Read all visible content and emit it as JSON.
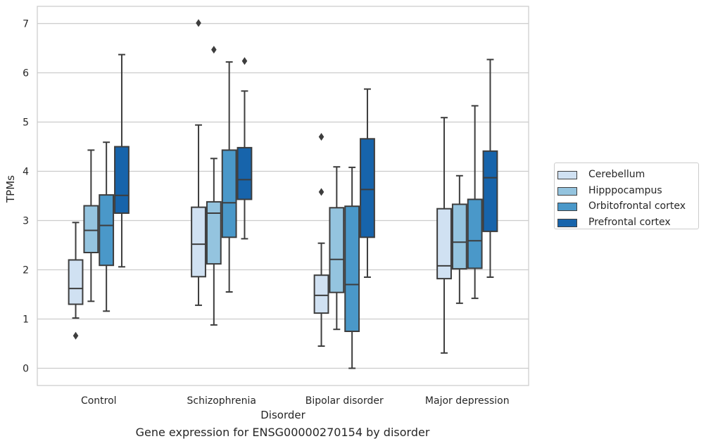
{
  "caption": "Gene expression for ENSG00000270154 by disorder",
  "chart_data": {
    "type": "box",
    "xlabel": "Disorder",
    "ylabel": "TPMs",
    "ylim": [
      -0.35,
      7.35
    ],
    "yticks": [
      0,
      1,
      2,
      3,
      4,
      5,
      6,
      7
    ],
    "grid": true,
    "legend_position": "right",
    "categories": [
      "Control",
      "Schizophrenia",
      "Bipolar disorder",
      "Major depression"
    ],
    "series": [
      {
        "name": "Cerebellum",
        "color": "#d0e1f2",
        "boxes": [
          {
            "whisker_low": 1.02,
            "q1": 1.3,
            "median": 1.62,
            "q3": 2.2,
            "whisker_high": 2.96,
            "outliers": [
              0.66
            ]
          },
          {
            "whisker_low": 1.28,
            "q1": 1.86,
            "median": 2.52,
            "q3": 3.27,
            "whisker_high": 4.94,
            "outliers": [
              7.01
            ]
          },
          {
            "whisker_low": 0.45,
            "q1": 1.12,
            "median": 1.48,
            "q3": 1.89,
            "whisker_high": 2.54,
            "outliers": [
              3.58,
              4.7
            ]
          },
          {
            "whisker_low": 0.31,
            "q1": 1.82,
            "median": 2.08,
            "q3": 3.24,
            "whisker_high": 5.09,
            "outliers": []
          }
        ]
      },
      {
        "name": "Hipppocampus",
        "color": "#94c4df",
        "boxes": [
          {
            "whisker_low": 1.36,
            "q1": 2.35,
            "median": 2.8,
            "q3": 3.3,
            "whisker_high": 4.43,
            "outliers": []
          },
          {
            "whisker_low": 0.88,
            "q1": 2.12,
            "median": 3.15,
            "q3": 3.38,
            "whisker_high": 4.26,
            "outliers": [
              6.47
            ]
          },
          {
            "whisker_low": 0.79,
            "q1": 1.54,
            "median": 2.21,
            "q3": 3.26,
            "whisker_high": 4.09,
            "outliers": []
          },
          {
            "whisker_low": 1.32,
            "q1": 2.02,
            "median": 2.56,
            "q3": 3.33,
            "whisker_high": 3.91,
            "outliers": []
          }
        ]
      },
      {
        "name": "Orbitofrontal cortex",
        "color": "#4a98c9",
        "boxes": [
          {
            "whisker_low": 1.16,
            "q1": 2.09,
            "median": 2.9,
            "q3": 3.52,
            "whisker_high": 4.59,
            "outliers": []
          },
          {
            "whisker_low": 1.55,
            "q1": 2.66,
            "median": 3.36,
            "q3": 4.43,
            "whisker_high": 6.22,
            "outliers": []
          },
          {
            "whisker_low": 0.0,
            "q1": 0.75,
            "median": 1.7,
            "q3": 3.29,
            "whisker_high": 4.08,
            "outliers": []
          },
          {
            "whisker_low": 1.42,
            "q1": 2.03,
            "median": 2.59,
            "q3": 3.43,
            "whisker_high": 5.33,
            "outliers": []
          }
        ]
      },
      {
        "name": "Prefrontal cortex",
        "color": "#1764ab",
        "boxes": [
          {
            "whisker_low": 2.06,
            "q1": 3.15,
            "median": 3.51,
            "q3": 4.5,
            "whisker_high": 6.37,
            "outliers": []
          },
          {
            "whisker_low": 2.63,
            "q1": 3.43,
            "median": 3.83,
            "q3": 4.48,
            "whisker_high": 5.63,
            "outliers": [
              6.24
            ]
          },
          {
            "whisker_low": 1.85,
            "q1": 2.66,
            "median": 3.63,
            "q3": 4.66,
            "whisker_high": 5.67,
            "outliers": []
          },
          {
            "whisker_low": 1.85,
            "q1": 2.78,
            "median": 3.87,
            "q3": 4.41,
            "whisker_high": 6.27,
            "outliers": []
          }
        ]
      }
    ]
  }
}
